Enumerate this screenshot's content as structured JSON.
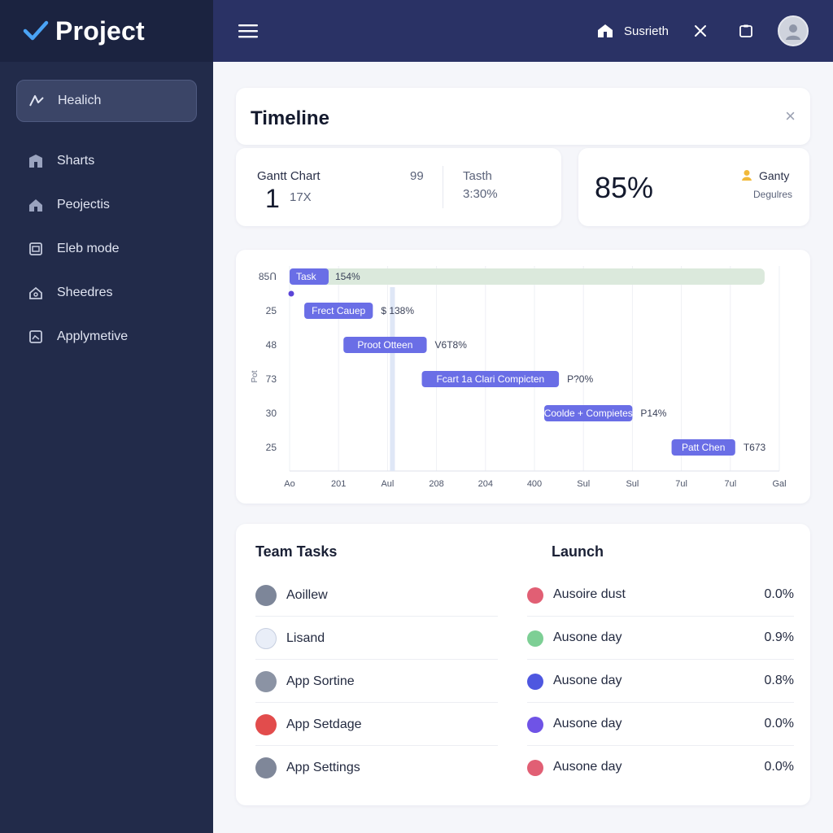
{
  "app": {
    "title": "Project"
  },
  "sidebar": {
    "items": [
      {
        "label": "Healich",
        "icon": "analytics-icon",
        "active": true
      },
      {
        "label": "Sharts",
        "icon": "building-icon"
      },
      {
        "label": "Peojectis",
        "icon": "home-icon"
      },
      {
        "label": "Eleb mode",
        "icon": "window-icon"
      },
      {
        "label": "Sheedres",
        "icon": "home-outline-icon"
      },
      {
        "label": "Applymetive",
        "icon": "image-icon"
      }
    ]
  },
  "topbar": {
    "user_label": "Susrieth",
    "icons": [
      "menu-icon",
      "house-icon",
      "close-icon",
      "clipboard-icon",
      "avatar-icon"
    ]
  },
  "timeline": {
    "title": "Timeline",
    "close": "×"
  },
  "stats": {
    "gantt_label": "Gantt Chart",
    "gantt_big": "1",
    "gantt_sub": "17X",
    "gantt_num": "99",
    "tasth_label": "Tasth",
    "tasth_value": "3:30%",
    "percent": "85%",
    "ganty_label": "Ganty",
    "degrees_label": "Degulres"
  },
  "colors": {
    "sidebar": "#222b4a",
    "topbar": "#2a3265",
    "bar": "#6a6ee6",
    "bar_light": "#dbe9dc"
  },
  "chart_data": {
    "type": "gantt",
    "y_tick_labels": [
      "85Ո",
      "25",
      "48",
      "73",
      "30",
      "25"
    ],
    "y_axis_label": "Pot",
    "x_tick_labels": [
      "Ao",
      "201",
      "Aul",
      "208",
      "204",
      "400",
      "Sul",
      "Sul",
      "7ul",
      "7ul",
      "Gal"
    ],
    "tasks": [
      {
        "label": "Task",
        "value_label": "154%",
        "start": 0,
        "end": 9.7,
        "style": "highlight"
      },
      {
        "label": "Frect Cauep",
        "value_label": "$ 138%",
        "start": 0.3,
        "end": 1.7
      },
      {
        "label": "Proot Otteen",
        "value_label": "V6T8%",
        "start": 1.1,
        "end": 2.8
      },
      {
        "label": "Fcart 1a Clari Compicten",
        "value_label": "P?0%",
        "start": 2.7,
        "end": 5.5
      },
      {
        "label": "Coolde + Compietes",
        "value_label": "P14%",
        "start": 5.2,
        "end": 7.0
      },
      {
        "label": "Patt Chen",
        "value_label": "T673",
        "start": 7.8,
        "end": 9.1
      }
    ],
    "marker_x": 2.1
  },
  "tasks_panel": {
    "title": "Team Tasks",
    "launch_title": "Launch",
    "rows": [
      {
        "name": "Aoillew",
        "launch": "Ausoire dust",
        "value": "0.0%",
        "dot": "#e15f74",
        "avatar": "#7d8699"
      },
      {
        "name": "Lisand",
        "launch": "Ausone day",
        "value": "0.9%",
        "dot": "#7dcf95",
        "avatar": "#e9eef8"
      },
      {
        "name": "App Sortine",
        "launch": "Ausone day",
        "value": "0.8%",
        "dot": "#4e57e0",
        "avatar": "#8b93a4"
      },
      {
        "name": "App Setdage",
        "launch": "Ausone day",
        "value": "0.0%",
        "dot": "#6f53e6",
        "avatar": "#e24c4c"
      },
      {
        "name": "App Settings",
        "launch": "Ausone day",
        "value": "0.0%",
        "dot": "#e15f74",
        "avatar": "#7f8799"
      }
    ]
  }
}
